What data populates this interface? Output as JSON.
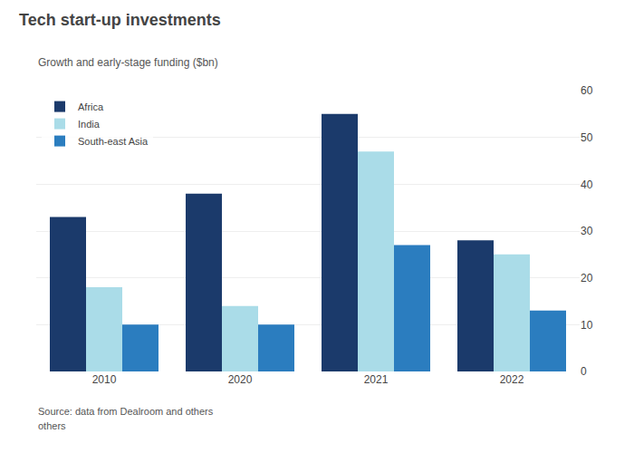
{
  "chart_data": {
    "type": "bar",
    "title": "Tech start-up investments",
    "subtitle": "Growth and early-stage funding ($bn)",
    "annotations": [
      "Source: data from Dealroom and others",
      "others"
    ],
    "categories": [
      "2010",
      "2020",
      "2021",
      "2022"
    ],
    "series": [
      {
        "name": "Africa",
        "color": "#1b3a6b",
        "values": [
          33,
          38,
          55,
          28
        ]
      },
      {
        "name": "India",
        "color": "#aadce8",
        "values": [
          18,
          14,
          47,
          25
        ]
      },
      {
        "name": "South-east Asia",
        "color": "#2b7dbf",
        "values": [
          10,
          10,
          27,
          13
        ]
      }
    ],
    "ylim": [
      0,
      60
    ],
    "yticks": [
      0,
      10,
      20,
      30,
      40,
      50,
      60
    ],
    "grid": true,
    "legend": "upper left"
  }
}
